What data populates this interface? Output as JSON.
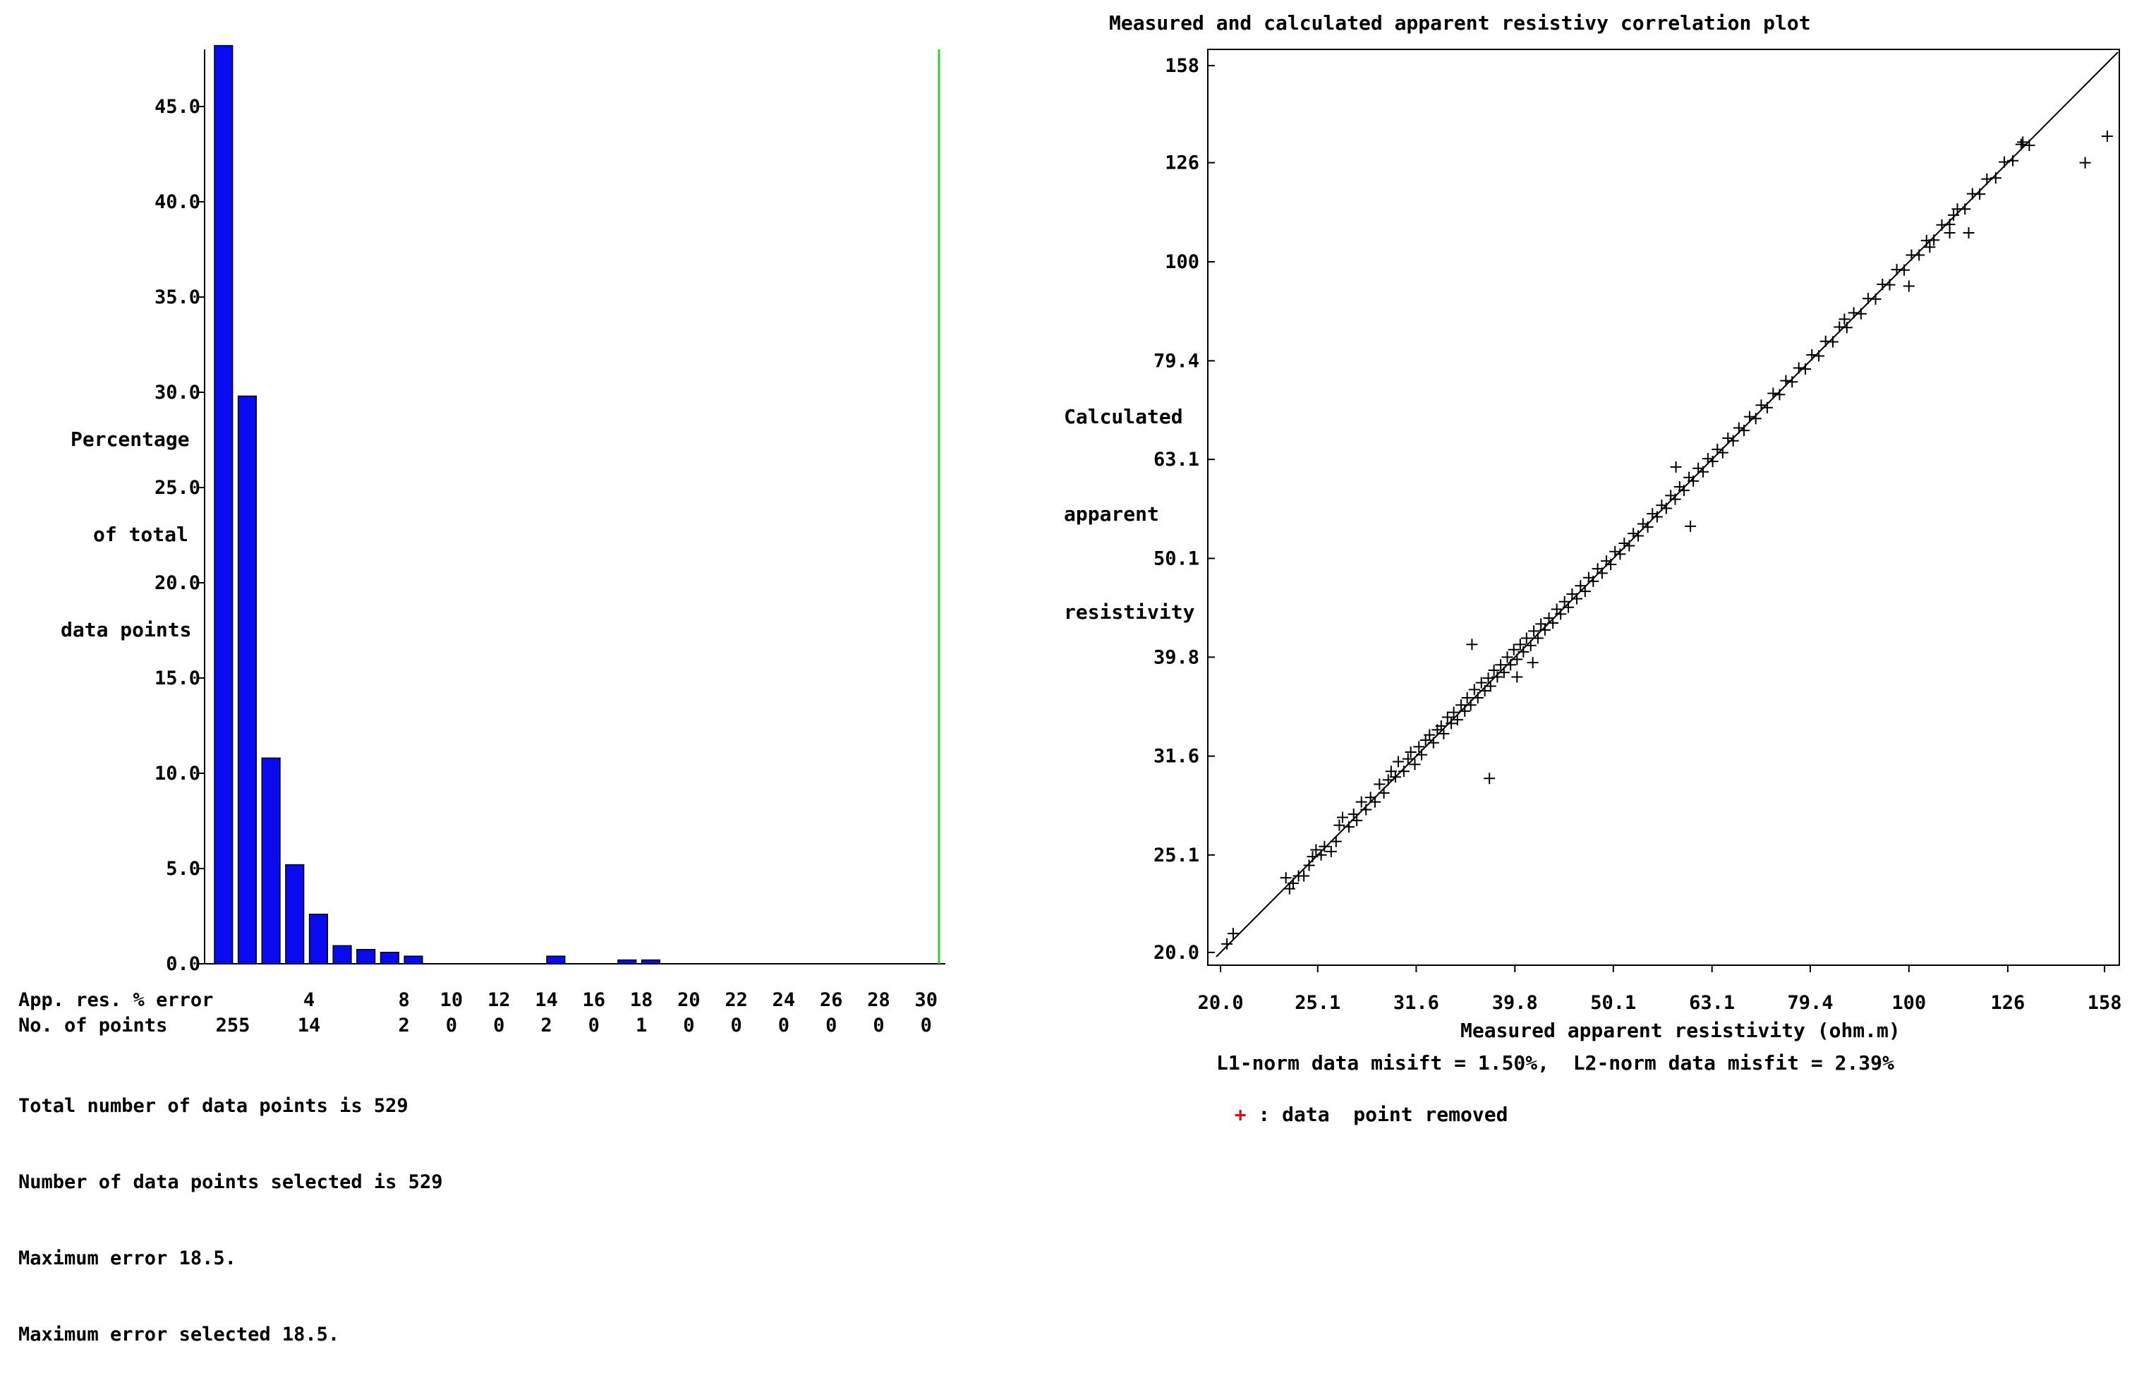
{
  "colors": {
    "bar": "#0a0af0",
    "max_error_line": "#33cc33",
    "removed_marker": "#e01010",
    "points": "#000000"
  },
  "histogram": {
    "y_labels": [
      "Percentage",
      "of total",
      "data points"
    ],
    "row_error_label": "App. res. % error",
    "row_points_label": "No. of points",
    "error_ticks": [
      "4",
      "8",
      "10",
      "12",
      "14",
      "16",
      "18",
      "20",
      "22",
      "24",
      "26",
      "28",
      "30"
    ],
    "point_counts_row": [
      "255",
      "14",
      "2",
      "0",
      "0",
      "2",
      "0",
      "1",
      "0",
      "0",
      "0",
      "0",
      "0",
      "0"
    ],
    "info_lines": [
      "Total number of data points is 529",
      "Number of data points selected is 529",
      "Maximum error 18.5.",
      "Maximum error selected 18.5."
    ]
  },
  "correlation": {
    "title": "Measured and calculated apparent resistivy correlation plot",
    "xlabel": "Measured apparent resistivity (ohm.m)",
    "y_labels": [
      "Calculated",
      "apparent",
      "resistivity"
    ],
    "misfit_text": "L1-norm data misift = 1.50%,  L2-norm data misfit = 2.39%",
    "legend_marker": "+",
    "legend_text": " : data  point removed"
  },
  "chart_data": [
    {
      "type": "bar",
      "ylabel": "Percentage of total data points",
      "xlabel": "App. res. % error",
      "ylim": [
        0,
        48
      ],
      "yticks": [
        0.0,
        5.0,
        10.0,
        15.0,
        20.0,
        25.0,
        30.0,
        35.0,
        40.0,
        45.0
      ],
      "ytick_labels": [
        "0.0",
        "5.0",
        "10.0",
        "15.0",
        "20.0",
        "25.0",
        "30.0",
        "35.0",
        "40.0",
        "45.0"
      ],
      "xlim": [
        0,
        31
      ],
      "xticks": [
        4,
        8,
        10,
        12,
        14,
        16,
        18,
        20,
        22,
        24,
        26,
        28,
        30
      ],
      "bin_width": 1,
      "bins": [
        {
          "x": 0,
          "value": 48.2
        },
        {
          "x": 1,
          "value": 29.8
        },
        {
          "x": 2,
          "value": 10.8
        },
        {
          "x": 3,
          "value": 5.2
        },
        {
          "x": 4,
          "value": 2.6
        },
        {
          "x": 5,
          "value": 0.95
        },
        {
          "x": 6,
          "value": 0.75
        },
        {
          "x": 7,
          "value": 0.6
        },
        {
          "x": 8,
          "value": 0.4
        },
        {
          "x": 14,
          "value": 0.4
        },
        {
          "x": 17,
          "value": 0.2
        },
        {
          "x": 18,
          "value": 0.2
        }
      ],
      "max_error_line_x": 31
    },
    {
      "type": "scatter",
      "title": "Measured and calculated apparent resistivy correlation plot",
      "xlabel": "Measured apparent resistivity (ohm.m)",
      "ylabel": "Calculated apparent resistivity",
      "scale": "log",
      "xlim": [
        19.8,
        163
      ],
      "ylim": [
        19.8,
        163
      ],
      "ticks": [
        20.0,
        25.1,
        31.6,
        39.8,
        50.1,
        63.1,
        79.4,
        100,
        126,
        158
      ],
      "tick_labels": [
        "20.0",
        "25.1",
        "31.6",
        "39.8",
        "50.1",
        "63.1",
        "79.4",
        "100",
        "126",
        "158"
      ],
      "reference_line": "y = x",
      "marker": "+",
      "points_total": 529,
      "points": [
        [
          20.3,
          20.4
        ],
        [
          20.6,
          20.9
        ],
        [
          23.3,
          23.8
        ],
        [
          23.5,
          23.2
        ],
        [
          23.7,
          23.5
        ],
        [
          24.0,
          23.9
        ],
        [
          24.3,
          23.9
        ],
        [
          24.6,
          24.5
        ],
        [
          24.8,
          25.0
        ],
        [
          25.0,
          25.4
        ],
        [
          25.3,
          25.1
        ],
        [
          25.5,
          25.6
        ],
        [
          25.9,
          25.3
        ],
        [
          26.2,
          25.9
        ],
        [
          26.4,
          26.9
        ],
        [
          26.6,
          27.4
        ],
        [
          27.0,
          26.8
        ],
        [
          27.3,
          27.6
        ],
        [
          27.5,
          27.2
        ],
        [
          27.8,
          28.4
        ],
        [
          28.1,
          27.9
        ],
        [
          28.4,
          28.7
        ],
        [
          28.7,
          28.4
        ],
        [
          29.0,
          29.6
        ],
        [
          29.3,
          29.0
        ],
        [
          29.6,
          29.9
        ],
        [
          29.8,
          30.5
        ],
        [
          30.1,
          30.1
        ],
        [
          30.3,
          31.2
        ],
        [
          30.7,
          30.5
        ],
        [
          31.0,
          31.4
        ],
        [
          31.2,
          31.9
        ],
        [
          31.5,
          31.0
        ],
        [
          31.8,
          32.3
        ],
        [
          32.0,
          31.7
        ],
        [
          32.3,
          32.8
        ],
        [
          32.6,
          33.2
        ],
        [
          32.9,
          32.6
        ],
        [
          33.2,
          33.6
        ],
        [
          33.5,
          33.9
        ],
        [
          33.7,
          33.3
        ],
        [
          34.0,
          34.6
        ],
        [
          34.3,
          34.1
        ],
        [
          34.5,
          35.0
        ],
        [
          34.8,
          34.4
        ],
        [
          35.1,
          35.6
        ],
        [
          35.4,
          35.1
        ],
        [
          35.6,
          36.2
        ],
        [
          35.9,
          35.6
        ],
        [
          36.2,
          36.9
        ],
        [
          36.5,
          36.2
        ],
        [
          36.8,
          37.5
        ],
        [
          37.1,
          36.8
        ],
        [
          37.4,
          37.9
        ],
        [
          37.6,
          37.2
        ],
        [
          37.9,
          38.6
        ],
        [
          38.2,
          38.0
        ],
        [
          38.5,
          39.1
        ],
        [
          38.8,
          38.4
        ],
        [
          39.1,
          39.8
        ],
        [
          39.4,
          39.1
        ],
        [
          39.7,
          40.5
        ],
        [
          40.0,
          39.6
        ],
        [
          40.3,
          41.0
        ],
        [
          40.6,
          40.3
        ],
        [
          40.9,
          41.6
        ],
        [
          41.3,
          40.9
        ],
        [
          41.6,
          42.3
        ],
        [
          42.0,
          41.6
        ],
        [
          42.3,
          43.0
        ],
        [
          42.7,
          42.4
        ],
        [
          43.1,
          43.6
        ],
        [
          43.5,
          43.1
        ],
        [
          43.9,
          44.5
        ],
        [
          44.3,
          44.0
        ],
        [
          44.7,
          45.3
        ],
        [
          45.1,
          44.7
        ],
        [
          45.5,
          46.1
        ],
        [
          46.0,
          45.6
        ],
        [
          46.4,
          47.0
        ],
        [
          46.9,
          46.4
        ],
        [
          47.3,
          47.9
        ],
        [
          47.8,
          47.5
        ],
        [
          48.3,
          48.9
        ],
        [
          48.8,
          48.4
        ],
        [
          49.3,
          49.8
        ],
        [
          49.8,
          49.4
        ],
        [
          50.3,
          50.9
        ],
        [
          50.9,
          50.6
        ],
        [
          51.4,
          51.9
        ],
        [
          52.0,
          51.6
        ],
        [
          52.5,
          53.1
        ],
        [
          53.1,
          52.8
        ],
        [
          53.7,
          54.3
        ],
        [
          54.3,
          53.9
        ],
        [
          54.9,
          55.6
        ],
        [
          55.5,
          55.2
        ],
        [
          56.1,
          56.7
        ],
        [
          56.7,
          56.3
        ],
        [
          57.3,
          58.0
        ],
        [
          57.9,
          57.5
        ],
        [
          58.5,
          59.2
        ],
        [
          59.1,
          58.7
        ],
        [
          59.8,
          60.5
        ],
        [
          60.4,
          60.0
        ],
        [
          61.1,
          61.8
        ],
        [
          61.8,
          61.3
        ],
        [
          62.5,
          63.2
        ],
        [
          63.2,
          62.8
        ],
        [
          63.9,
          64.6
        ],
        [
          64.7,
          64.1
        ],
        [
          65.5,
          66.3
        ],
        [
          66.3,
          65.9
        ],
        [
          67.2,
          67.9
        ],
        [
          68.0,
          67.5
        ],
        [
          68.9,
          69.7
        ],
        [
          69.9,
          69.4
        ],
        [
          70.8,
          71.6
        ],
        [
          71.8,
          71.2
        ],
        [
          72.8,
          73.6
        ],
        [
          73.9,
          73.4
        ],
        [
          75.0,
          75.8
        ],
        [
          76.1,
          75.6
        ],
        [
          77.3,
          78.1
        ],
        [
          78.5,
          77.9
        ],
        [
          79.7,
          80.5
        ],
        [
          81.0,
          80.3
        ],
        [
          82.3,
          83.1
        ],
        [
          83.7,
          83.0
        ],
        [
          85.0,
          85.9
        ],
        [
          86.5,
          85.8
        ],
        [
          87.9,
          88.8
        ],
        [
          89.4,
          88.6
        ],
        [
          90.9,
          91.8
        ],
        [
          92.5,
          91.7
        ],
        [
          94.0,
          94.9
        ],
        [
          95.6,
          94.8
        ],
        [
          97.2,
          98.2
        ],
        [
          98.9,
          98.1
        ],
        [
          100.6,
          101.6
        ],
        [
          102.4,
          101.6
        ],
        [
          104.2,
          105.1
        ],
        [
          106.0,
          105.2
        ],
        [
          108.0,
          109.0
        ],
        [
          110.0,
          109.1
        ],
        [
          112.0,
          113.1
        ],
        [
          114.0,
          113.1
        ],
        [
          116.0,
          117.2
        ],
        [
          118.0,
          117.1
        ],
        [
          120.0,
          121.3
        ],
        [
          122.5,
          121.6
        ],
        [
          125.0,
          126.2
        ],
        [
          127.5,
          126.6
        ],
        [
          130.0,
          131.5
        ],
        [
          132.5,
          131.2
        ],
        [
          115.0,
          107.0
        ],
        [
          110.0,
          107.0
        ],
        [
          151.0,
          126.0
        ],
        [
          159.0,
          134.0
        ],
        [
          130.5,
          132.2
        ],
        [
          36.0,
          41.0
        ],
        [
          37.5,
          30.0
        ],
        [
          40.0,
          38.0
        ],
        [
          41.5,
          39.3
        ],
        [
          60.0,
          54.0
        ],
        [
          58.0,
          62.0
        ],
        [
          100.0,
          94.5
        ],
        [
          105.0,
          103.5
        ],
        [
          111.0,
          111.5
        ],
        [
          86.0,
          87.5
        ]
      ]
    }
  ]
}
